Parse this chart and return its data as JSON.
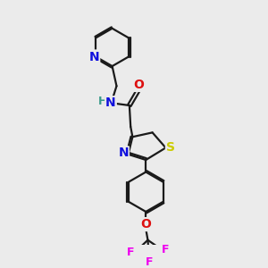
{
  "bg_color": "#ebebeb",
  "bond_color": "#1a1a1a",
  "bond_width": 1.6,
  "atom_colors": {
    "N": "#1010dd",
    "O": "#dd1010",
    "S": "#cccc00",
    "F": "#ee00ee",
    "C": "#1a1a1a",
    "H": "#3a9a8a"
  },
  "font_size": 9,
  "fig_size": [
    3.0,
    3.0
  ],
  "dpi": 100
}
